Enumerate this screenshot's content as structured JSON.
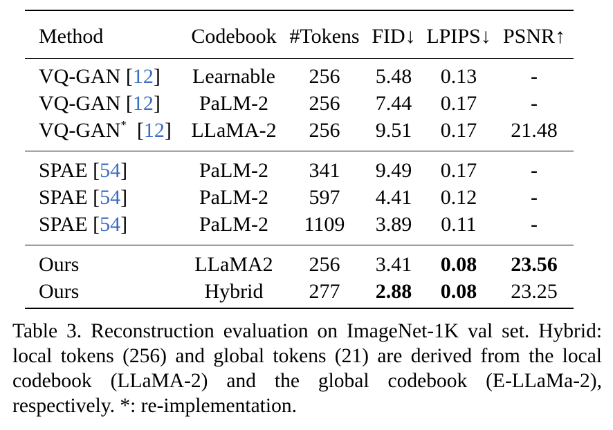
{
  "table": {
    "headers": [
      "Method",
      "Codebook",
      "#Tokens",
      "FID↓",
      "LPIPS↓",
      "PSNR↑"
    ],
    "groups": [
      [
        {
          "method": "VQ-GAN",
          "star": "",
          "ref": "12",
          "codebook": "Learnable",
          "tokens": "256",
          "fid": "5.48",
          "lpips": "0.13",
          "psnr": "-"
        },
        {
          "method": "VQ-GAN",
          "star": "",
          "ref": "12",
          "codebook": "PaLM-2",
          "tokens": "256",
          "fid": "7.44",
          "lpips": "0.17",
          "psnr": "-"
        },
        {
          "method": "VQ-GAN",
          "star": "*",
          "ref": "12",
          "codebook": "LLaMA-2",
          "tokens": "256",
          "fid": "9.51",
          "lpips": "0.17",
          "psnr": "21.48"
        }
      ],
      [
        {
          "method": "SPAE",
          "star": "",
          "ref": "54",
          "codebook": "PaLM-2",
          "tokens": "341",
          "fid": "9.49",
          "lpips": "0.17",
          "psnr": "-"
        },
        {
          "method": "SPAE",
          "star": "",
          "ref": "54",
          "codebook": "PaLM-2",
          "tokens": "597",
          "fid": "4.41",
          "lpips": "0.12",
          "psnr": "-"
        },
        {
          "method": "SPAE",
          "star": "",
          "ref": "54",
          "codebook": "PaLM-2",
          "tokens": "1109",
          "fid": "3.89",
          "lpips": "0.11",
          "psnr": "-"
        }
      ],
      [
        {
          "method": "Ours",
          "star": "",
          "ref": "",
          "codebook": "LLaMA2",
          "tokens": "256",
          "fid": "3.41",
          "lpips": "0.08",
          "psnr": "23.56",
          "bold": [
            "lpips",
            "psnr"
          ]
        },
        {
          "method": "Ours",
          "star": "",
          "ref": "",
          "codebook": "Hybrid",
          "tokens": "277",
          "fid": "2.88",
          "lpips": "0.08",
          "psnr": "23.25",
          "bold": [
            "fid",
            "lpips"
          ]
        }
      ]
    ]
  },
  "caption": {
    "label": "Table 3.",
    "text": "Reconstruction evaluation on ImageNet-1K val set. Hybrid: local tokens (256) and global tokens (21) are derived from the local codebook (LLaMA-2) and the global codebook (E-LLaMa-2), respectively. *: re-implementation."
  }
}
